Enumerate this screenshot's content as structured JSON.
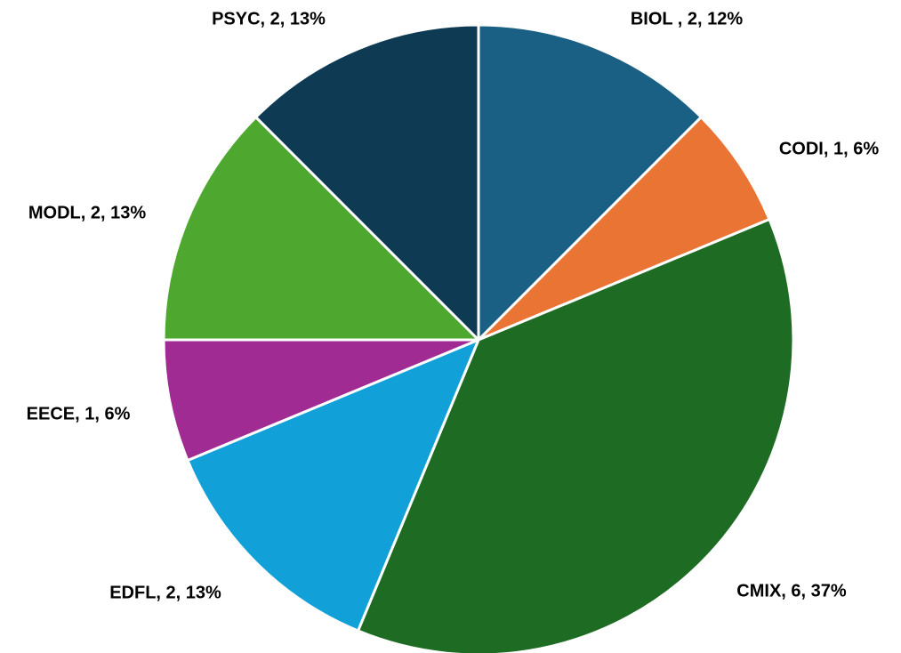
{
  "chart_data": {
    "type": "pie",
    "values": [
      2,
      1,
      6,
      2,
      1,
      2,
      2
    ],
    "value_labels": [
      "BIOL , 2, 12%",
      "CODI, 1, 6%",
      "CMIX, 6, 37%",
      "EDFL, 2, 13%",
      "EECE, 1, 6%",
      "MODL, 2, 13%",
      "PSYC, 2, 13%"
    ],
    "colors": [
      "#1a6084",
      "#e97434",
      "#1e6b24",
      "#11a0d7",
      "#a02b93",
      "#4ea72e",
      "#0e3a53"
    ]
  }
}
